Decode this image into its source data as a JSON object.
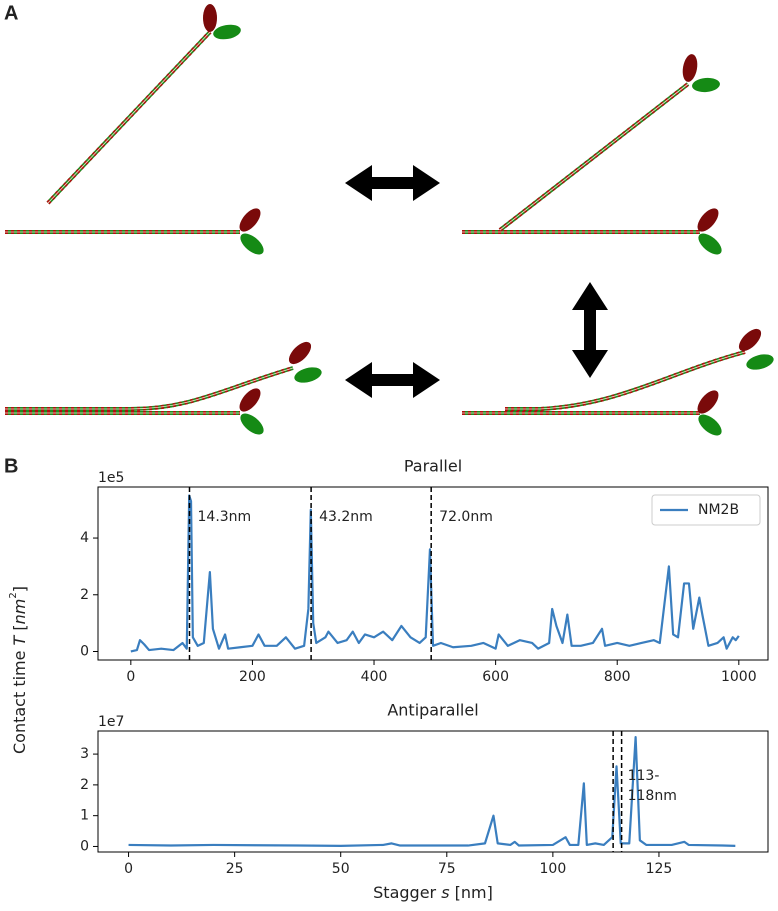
{
  "panel_labels": [
    "A",
    "B"
  ],
  "ylabel_parts": [
    "Contact time ",
    "T",
    " [",
    "nm",
    "2",
    "]"
  ],
  "chart_data": [
    {
      "type": "line",
      "title": "Parallel",
      "offset_text": "1e5",
      "legend": "upper right",
      "x": [
        0,
        10,
        15,
        22,
        30,
        50,
        70,
        85,
        92,
        96,
        99,
        102,
        110,
        120,
        130,
        135,
        145,
        155,
        160,
        180,
        200,
        210,
        220,
        240,
        255,
        270,
        285,
        292,
        296,
        300,
        305,
        320,
        325,
        340,
        355,
        365,
        375,
        385,
        400,
        415,
        430,
        445,
        460,
        475,
        485,
        492,
        497,
        510,
        530,
        560,
        580,
        600,
        605,
        620,
        640,
        660,
        670,
        688,
        693,
        700,
        710,
        718,
        725,
        740,
        760,
        775,
        780,
        800,
        820,
        840,
        860,
        870,
        885,
        892,
        900,
        910,
        918,
        925,
        935,
        940,
        950,
        965,
        975,
        980,
        990,
        995,
        1000
      ],
      "series": [
        {
          "name": "NM2B",
          "color": "#3a7ebf",
          "values": [
            0,
            0.05,
            0.4,
            0.25,
            0.05,
            0.1,
            0.05,
            0.3,
            0.1,
            5.5,
            5.3,
            0.5,
            0.2,
            0.3,
            2.8,
            0.8,
            0.1,
            0.6,
            0.1,
            0.15,
            0.2,
            0.6,
            0.2,
            0.2,
            0.5,
            0.1,
            0.2,
            1.5,
            5.0,
            1.0,
            0.3,
            0.5,
            0.7,
            0.3,
            0.4,
            0.7,
            0.3,
            0.6,
            0.5,
            0.7,
            0.4,
            0.9,
            0.5,
            0.3,
            0.5,
            3.6,
            0.2,
            0.3,
            0.15,
            0.2,
            0.3,
            0.1,
            0.6,
            0.2,
            0.4,
            0.3,
            0.1,
            0.3,
            1.5,
            0.9,
            0.3,
            1.3,
            0.2,
            0.2,
            0.3,
            0.8,
            0.2,
            0.3,
            0.2,
            0.3,
            0.4,
            0.3,
            3.0,
            0.6,
            0.5,
            2.4,
            2.4,
            0.8,
            1.9,
            1.3,
            0.2,
            0.3,
            0.5,
            0.1,
            0.5,
            0.4,
            0.55
          ]
        }
      ],
      "xlim": [
        -54,
        1048
      ],
      "ylim": [
        -0.3,
        5.8
      ],
      "xticks": [
        0,
        200,
        400,
        600,
        800,
        1000
      ],
      "yticks": [
        0,
        2,
        4
      ],
      "vlines": [
        96.5,
        296.5,
        494
      ],
      "annotations": [
        "14.3nm",
        "43.2nm",
        "72.0nm"
      ]
    },
    {
      "type": "line",
      "title": "Antiparallel",
      "offset_text": "1e7",
      "x": [
        0,
        10,
        20,
        30,
        40,
        50,
        60,
        62,
        64,
        80,
        84,
        86,
        87,
        90,
        91,
        92,
        100,
        103,
        104,
        106,
        107.3,
        108,
        110,
        112,
        114,
        115,
        116,
        118,
        119.5,
        120.5,
        122,
        128,
        131,
        132,
        140,
        143
      ],
      "series": [
        {
          "color": "#3a7ebf",
          "values": [
            0.05,
            0.03,
            0.05,
            0.04,
            0.03,
            0.02,
            0.05,
            0.1,
            0.03,
            0.03,
            0.1,
            1.0,
            0.1,
            0.05,
            0.15,
            0.03,
            0.05,
            0.3,
            0.05,
            0.05,
            2.05,
            0.05,
            0.1,
            0.05,
            0.3,
            2.6,
            0.1,
            0.1,
            3.55,
            0.2,
            0.05,
            0.05,
            0.15,
            0.05,
            0.03,
            0.02
          ]
        }
      ],
      "xlim": [
        -7.2,
        150.7
      ],
      "ylim": [
        -0.18,
        3.75
      ],
      "xticks": [
        0,
        25,
        50,
        75,
        100,
        125
      ],
      "yticks": [
        0,
        1,
        2,
        3
      ],
      "vlines": [
        114.2,
        116.2
      ],
      "annotation_lines": [
        "113-",
        "118nm"
      ],
      "xlabel_parts": [
        "Stagger ",
        "s",
        " [nm]"
      ]
    }
  ]
}
